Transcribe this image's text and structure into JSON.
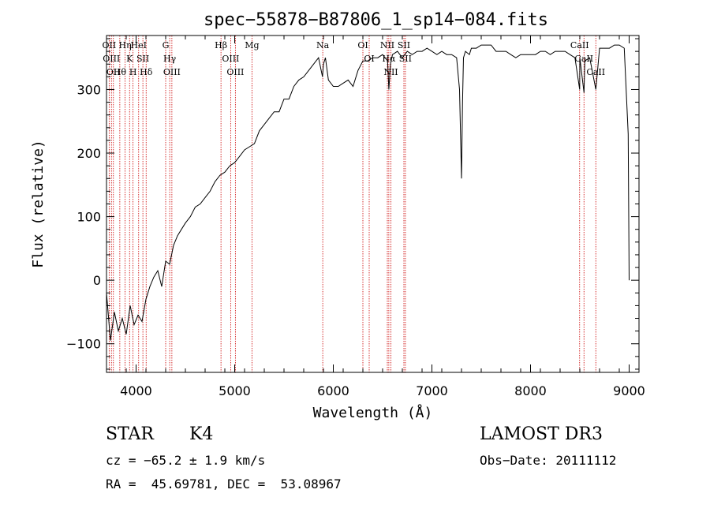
{
  "chart_data": {
    "type": "line",
    "title": "spec−55878−B87806_1_sp14−084.fits",
    "xlabel": "Wavelength (Å)",
    "ylabel": "Flux (relative)",
    "xlim": [
      3700,
      9100
    ],
    "ylim": [
      -145,
      385
    ],
    "x_ticks": [
      4000,
      5000,
      6000,
      7000,
      8000,
      9000
    ],
    "y_ticks": [
      -100,
      0,
      100,
      200,
      300
    ],
    "line_color": "#000000",
    "marker_color": "#cc0000",
    "grid": false,
    "series": [
      {
        "x": [
          3700,
          3740,
          3780,
          3820,
          3860,
          3900,
          3940,
          3980,
          4020,
          4060,
          4100,
          4140,
          4180,
          4220,
          4260,
          4300,
          4340,
          4380,
          4420,
          4460,
          4500,
          4550,
          4600,
          4650,
          4700,
          4750,
          4800,
          4850,
          4900,
          4950,
          5000,
          5050,
          5100,
          5150,
          5200,
          5250,
          5300,
          5350,
          5400,
          5450,
          5500,
          5550,
          5600,
          5650,
          5700,
          5750,
          5800,
          5850,
          5890,
          5900,
          5920,
          5950,
          6000,
          6050,
          6100,
          6150,
          6200,
          6250,
          6300,
          6350,
          6400,
          6450,
          6500,
          6550,
          6563,
          6580,
          6600,
          6650,
          6700,
          6750,
          6800,
          6850,
          6900,
          6950,
          7000,
          7050,
          7100,
          7150,
          7200,
          7250,
          7280,
          7300,
          7310,
          7320,
          7340,
          7380,
          7400,
          7450,
          7500,
          7550,
          7600,
          7650,
          7700,
          7750,
          7800,
          7850,
          7900,
          7950,
          8000,
          8050,
          8100,
          8150,
          8200,
          8250,
          8300,
          8350,
          8400,
          8450,
          8498,
          8500,
          8542,
          8550,
          8600,
          8662,
          8700,
          8750,
          8800,
          8850,
          8900,
          8950,
          8990,
          9000
        ],
        "y": [
          -20,
          -95,
          -50,
          -80,
          -60,
          -85,
          -40,
          -70,
          -55,
          -65,
          -30,
          -10,
          5,
          15,
          -10,
          30,
          25,
          55,
          70,
          80,
          90,
          100,
          115,
          120,
          130,
          140,
          155,
          165,
          170,
          180,
          185,
          195,
          205,
          210,
          215,
          235,
          245,
          255,
          265,
          265,
          285,
          285,
          305,
          315,
          320,
          330,
          340,
          350,
          320,
          340,
          350,
          315,
          305,
          305,
          310,
          315,
          305,
          330,
          345,
          345,
          350,
          350,
          355,
          345,
          300,
          340,
          355,
          360,
          350,
          360,
          355,
          360,
          360,
          365,
          360,
          355,
          360,
          355,
          355,
          350,
          300,
          160,
          280,
          350,
          360,
          355,
          365,
          365,
          370,
          370,
          370,
          360,
          360,
          360,
          355,
          350,
          355,
          355,
          355,
          355,
          360,
          360,
          355,
          360,
          360,
          360,
          355,
          350,
          300,
          350,
          295,
          345,
          350,
          300,
          365,
          365,
          365,
          370,
          370,
          365,
          230,
          0
        ]
      }
    ],
    "line_markers": [
      {
        "x": 3727,
        "label": "OII"
      },
      {
        "x": 3750,
        "label": "OIII"
      },
      {
        "x": 3770,
        "label": "OII"
      },
      {
        "x": 3835,
        "label": "Hθ"
      },
      {
        "x": 3889,
        "label": "Hη"
      },
      {
        "x": 3934,
        "label": "K"
      },
      {
        "x": 3969,
        "label": "H"
      },
      {
        "x": 4026,
        "label": "HeI"
      },
      {
        "x": 4069,
        "label": "SII"
      },
      {
        "x": 4102,
        "label": "Hδ"
      },
      {
        "x": 4300,
        "label": "G"
      },
      {
        "x": 4341,
        "label": "Hγ"
      },
      {
        "x": 4363,
        "label": "OIII"
      },
      {
        "x": 4861,
        "label": "Hβ"
      },
      {
        "x": 4959,
        "label": "OIII"
      },
      {
        "x": 5007,
        "label": "OIII"
      },
      {
        "x": 5175,
        "label": "Mg"
      },
      {
        "x": 5893,
        "label": "Na"
      },
      {
        "x": 6300,
        "label": "OI"
      },
      {
        "x": 6364,
        "label": "OI"
      },
      {
        "x": 6548,
        "label": "NII"
      },
      {
        "x": 6563,
        "label": "Hα"
      },
      {
        "x": 6584,
        "label": "NII"
      },
      {
        "x": 6716,
        "label": "SII"
      },
      {
        "x": 6731,
        "label": "SII"
      },
      {
        "x": 8498,
        "label": "CaII"
      },
      {
        "x": 8542,
        "label": "CaII"
      },
      {
        "x": 8662,
        "label": "CaII"
      }
    ]
  },
  "info": {
    "object_class": "STAR",
    "subclass": "K4",
    "survey": "LAMOST DR3",
    "cz": "cz = −65.2 ± 1.9 km/s",
    "obs_date": "Obs−Date: 20111112",
    "coords": "RA =  45.69781, DEC =  53.08967"
  }
}
